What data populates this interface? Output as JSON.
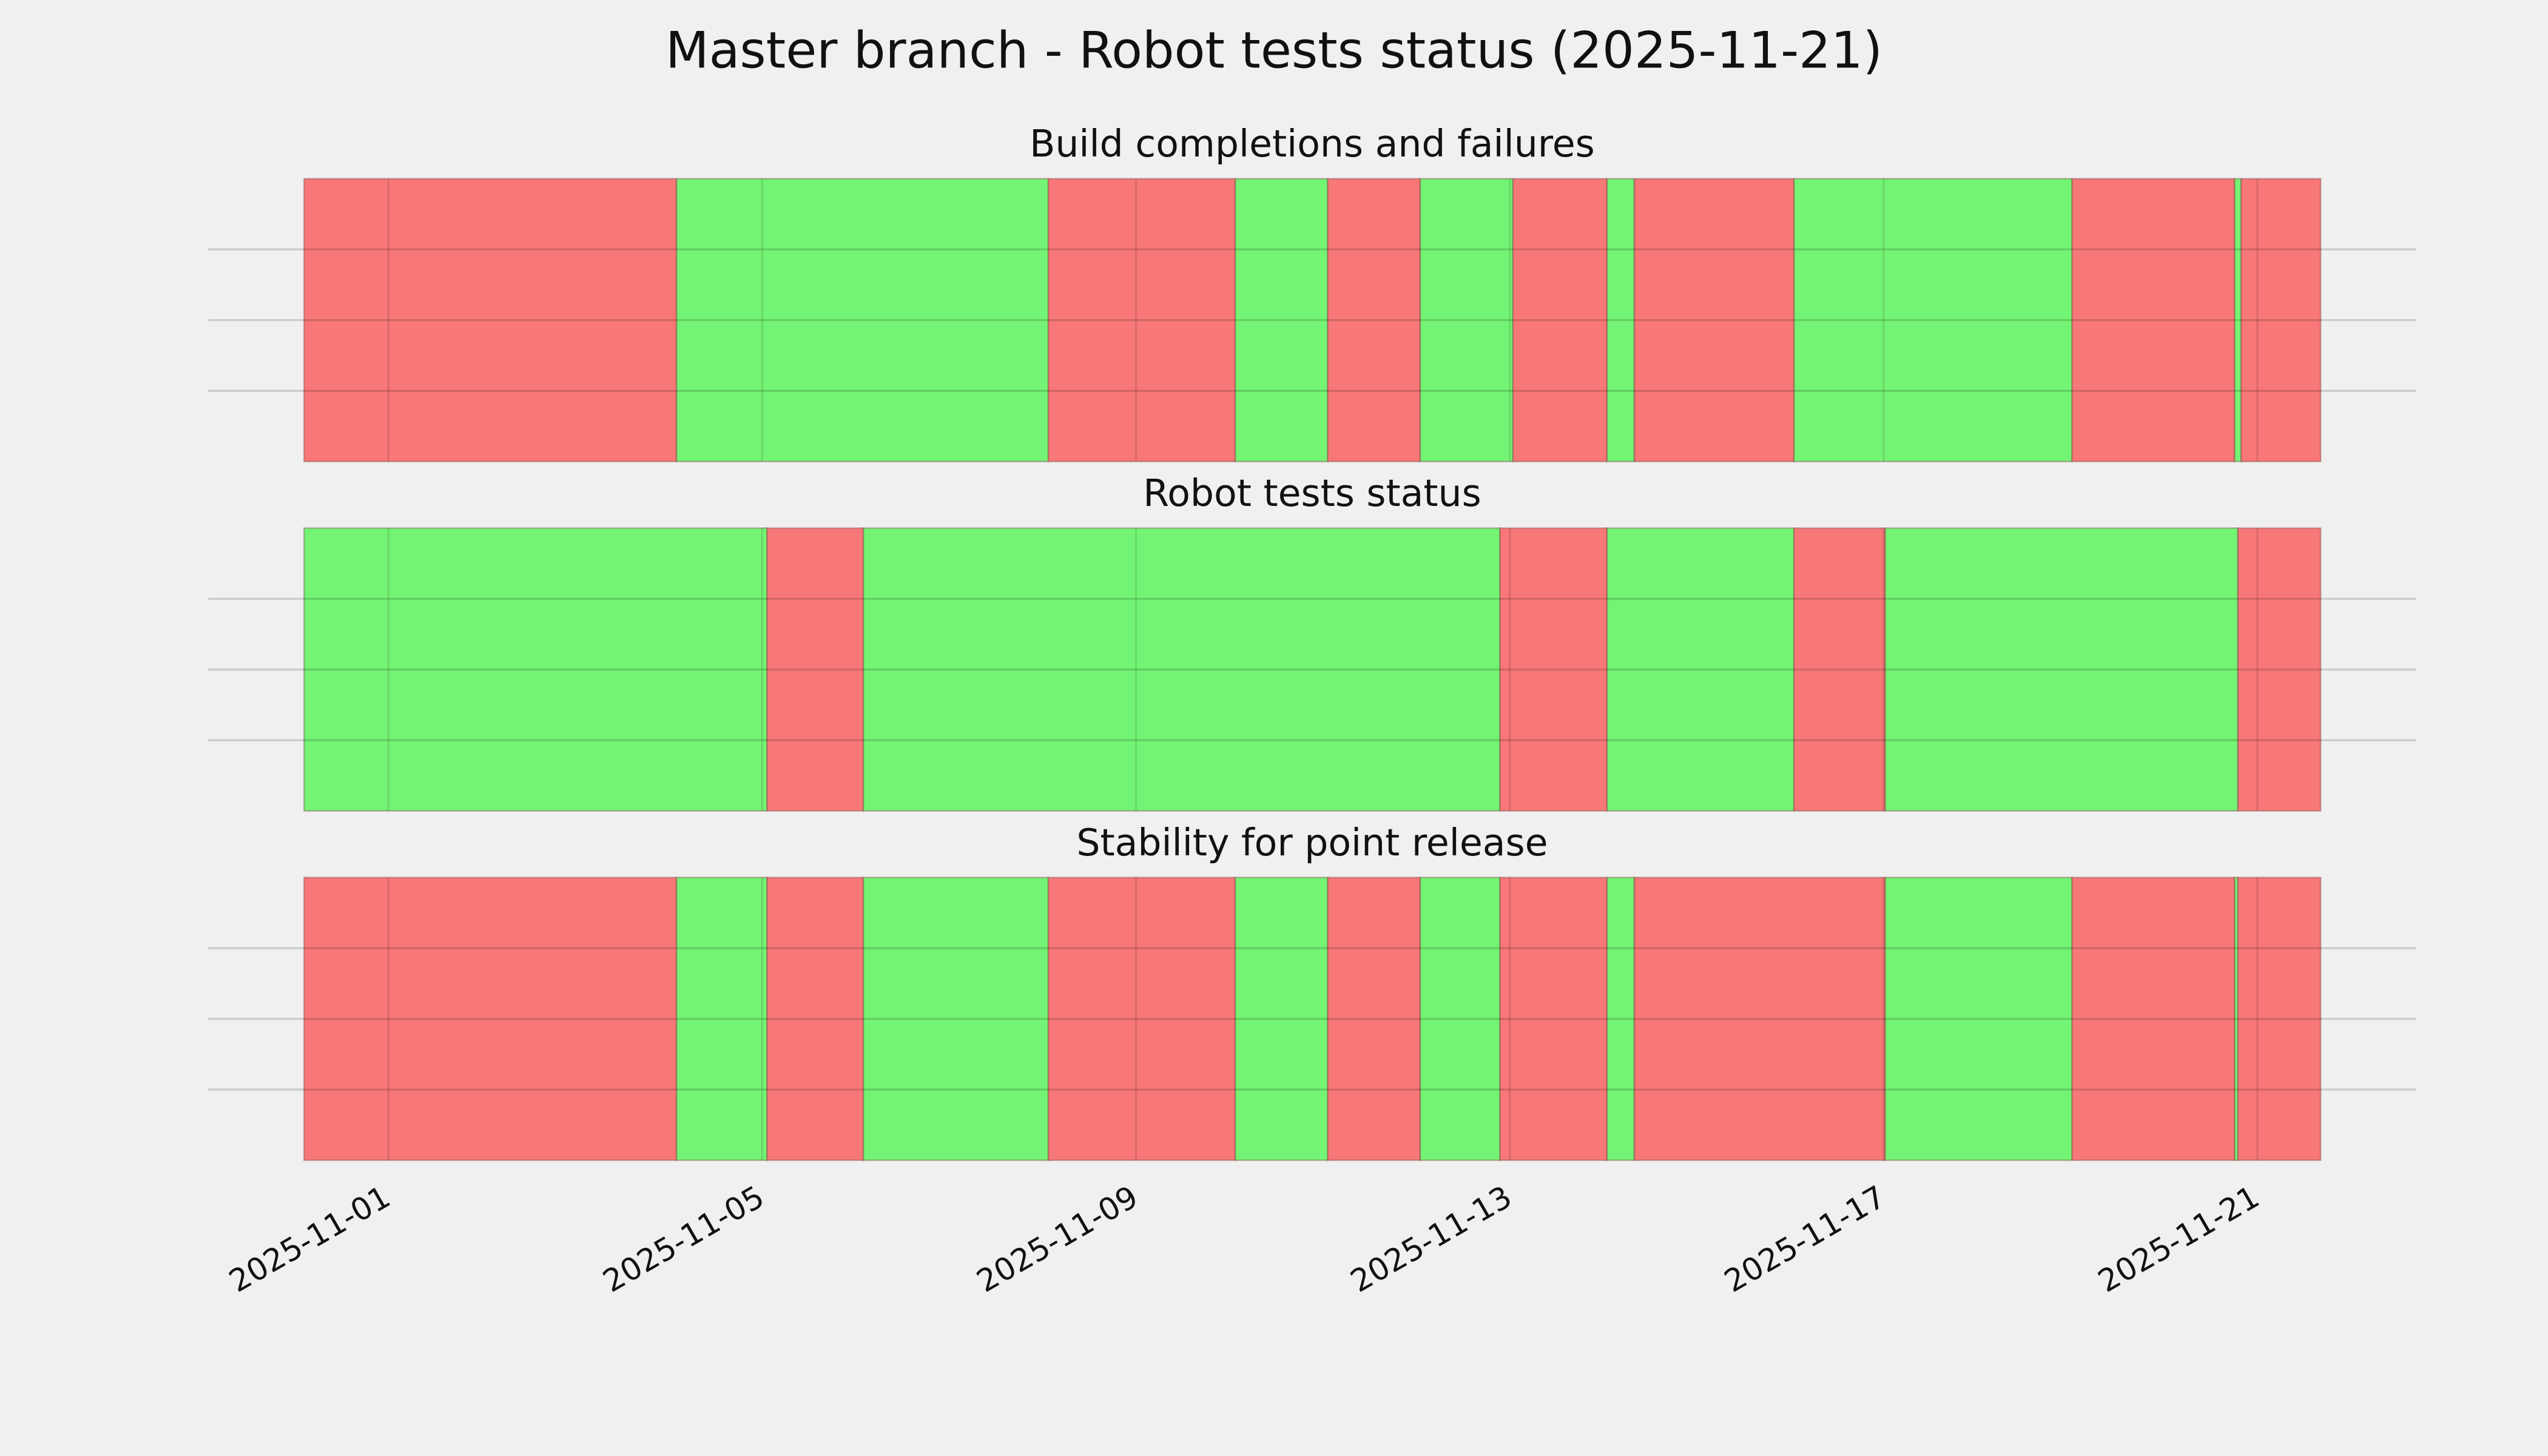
{
  "title": "Master branch - Robot tests status (2025-11-21)",
  "chart_data": [
    {
      "type": "timeline",
      "title": "Build completions and failures",
      "bins": [
        "2025-10-31T02:20",
        "2025-11-04T02:00",
        "2025-11-08T01:30",
        "2025-11-10T01:30",
        "2025-11-11T01:15",
        "2025-11-12T01:00",
        "2025-11-13T00:50",
        "2025-11-14T01:00",
        "2025-11-14T08:00",
        "2025-11-16T01:00",
        "2025-11-19T00:25",
        "2025-11-20T18:10",
        "2025-11-20T19:50",
        "2025-11-21T16:15"
      ],
      "colors": [
        "#f87878",
        "#74f474",
        "#f87878",
        "#74f474",
        "#f87878",
        "#74f474",
        "#f87878",
        "#74f474",
        "#f87878",
        "#74f474",
        "#f87878",
        "#74f474",
        "#f87878"
      ],
      "xlim": [
        "2025-10-30T01:40",
        "2025-11-22T16:50"
      ],
      "xticks": [
        "2025-11-01",
        "2025-11-05",
        "2025-11-09",
        "2025-11-13",
        "2025-11-17",
        "2025-11-21"
      ],
      "ylim": [
        0,
        1
      ],
      "yticks": [
        0.25,
        0.5,
        0.75
      ],
      "grid": true
    },
    {
      "type": "timeline",
      "title": "Robot tests status",
      "bins": [
        "2025-10-31T02:20",
        "2025-11-05T01:15",
        "2025-11-06T02:00",
        "2025-11-12T21:30",
        "2025-11-14T01:00",
        "2025-11-16T01:00",
        "2025-11-17T00:25",
        "2025-11-20T19:00",
        "2025-11-21T16:15"
      ],
      "colors": [
        "#74f474",
        "#f87878",
        "#74f474",
        "#f87878",
        "#74f474",
        "#f87878",
        "#74f474",
        "#f87878"
      ],
      "xlim": [
        "2025-10-30T01:40",
        "2025-11-22T16:50"
      ],
      "xticks": [
        "2025-11-01",
        "2025-11-05",
        "2025-11-09",
        "2025-11-13",
        "2025-11-17",
        "2025-11-21"
      ],
      "ylim": [
        0,
        1
      ],
      "yticks": [
        0.25,
        0.5,
        0.75
      ],
      "grid": true
    },
    {
      "type": "timeline",
      "title": "Stability for point release",
      "bins": [
        "2025-10-31T02:20",
        "2025-11-04T02:00",
        "2025-11-05T01:15",
        "2025-11-06T02:00",
        "2025-11-08T01:30",
        "2025-11-10T01:30",
        "2025-11-11T01:15",
        "2025-11-12T01:00",
        "2025-11-12T21:30",
        "2025-11-14T01:00",
        "2025-11-14T08:00",
        "2025-11-17T00:25",
        "2025-11-19T00:25",
        "2025-11-20T18:10",
        "2025-11-20T19:00",
        "2025-11-21T16:15"
      ],
      "colors": [
        "#f87878",
        "#74f474",
        "#f87878",
        "#74f474",
        "#f87878",
        "#74f474",
        "#f87878",
        "#74f474",
        "#f87878",
        "#74f474",
        "#f87878",
        "#74f474",
        "#f87878",
        "#74f474",
        "#f87878"
      ],
      "xlim": [
        "2025-10-30T01:40",
        "2025-11-22T16:50"
      ],
      "xticks": [
        "2025-11-01",
        "2025-11-05",
        "2025-11-09",
        "2025-11-13",
        "2025-11-17",
        "2025-11-21"
      ],
      "ylim": [
        0,
        1
      ],
      "yticks": [
        0.25,
        0.5,
        0.75
      ],
      "grid": true
    }
  ]
}
